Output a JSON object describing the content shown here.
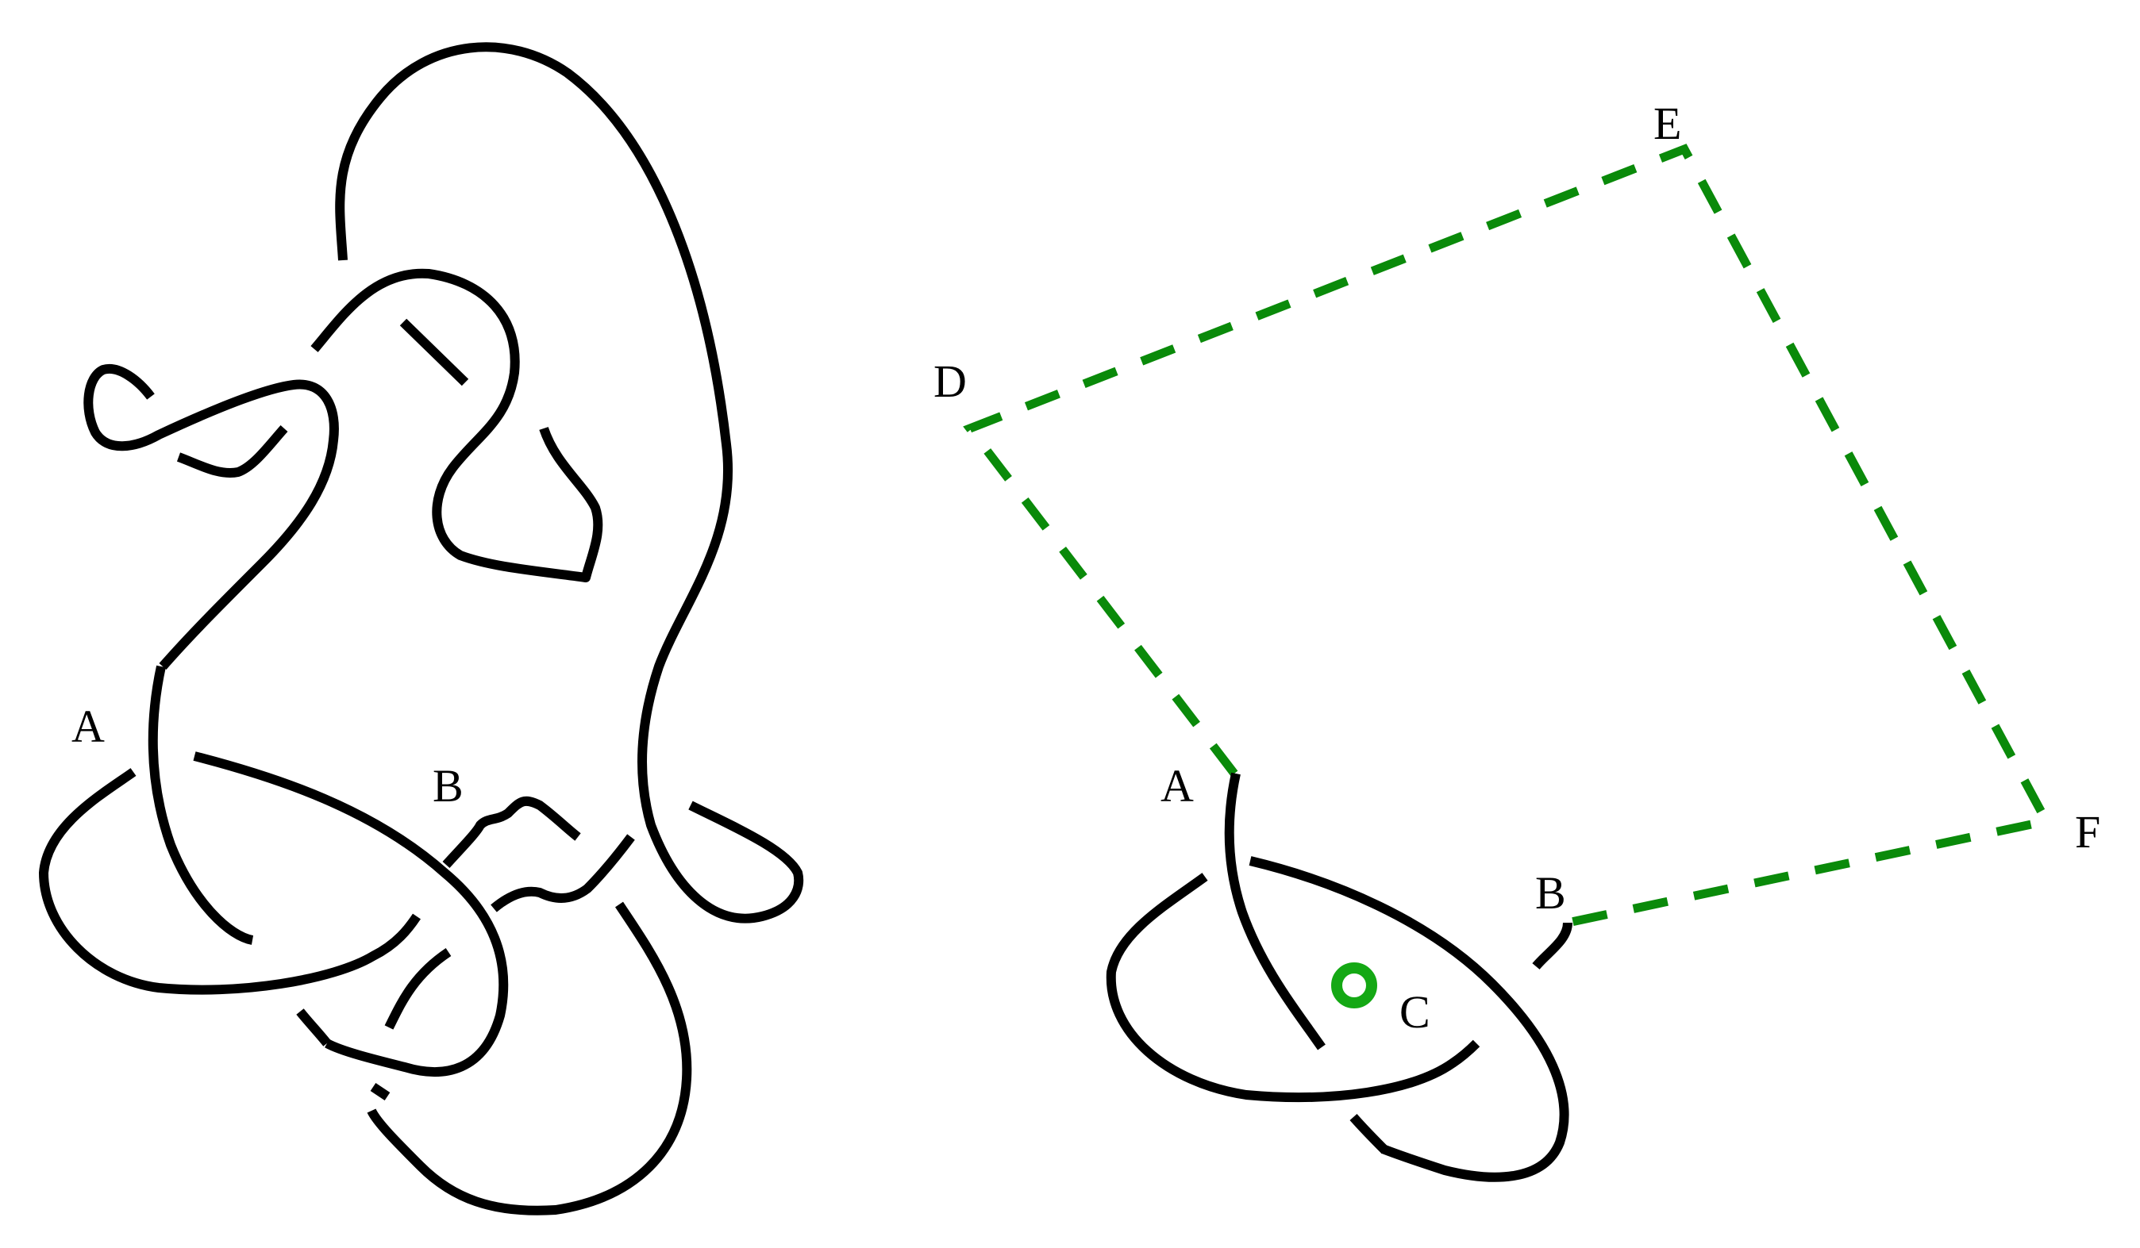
{
  "colors": {
    "strand": "#000000",
    "path": "#0a8a0a",
    "marker": "#14a814",
    "background": "#ffffff"
  },
  "left_knot": {
    "labels": {
      "a": "A",
      "b": "B"
    }
  },
  "right_figure": {
    "labels": {
      "a": "A",
      "b": "B",
      "c": "C",
      "d": "D",
      "e": "E",
      "f": "F"
    },
    "path_style": "dashed"
  }
}
